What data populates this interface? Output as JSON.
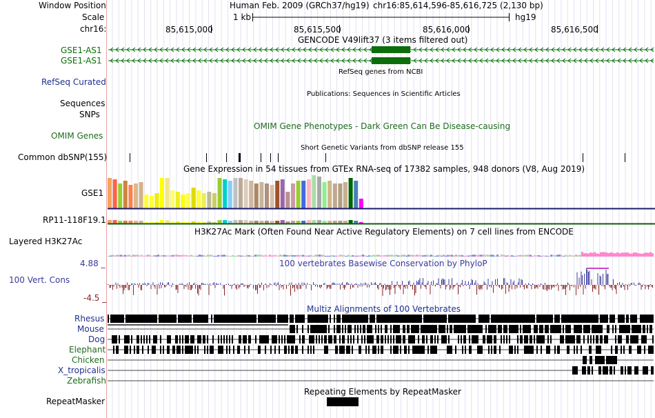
{
  "header": {
    "window_position_label": "Window Position",
    "scale_label": "Scale",
    "chrom_label": "chr16:",
    "assembly_text": "Human Feb. 2009 (GRCh37/hg19)",
    "position_text": "chr16:85,614,596-85,616,725 (2,130 bp)",
    "scale_value": "1 kb",
    "scale_assembly": "hg19",
    "ruler_ticks": [
      "85,615,000",
      "85,615,500",
      "85,616,000",
      "85,616,500"
    ]
  },
  "tracks": {
    "gencode": {
      "title": "GENCODE V49lift37 (3 items filtered out)",
      "items": [
        "GSE1-AS1",
        "GSE1-AS1"
      ],
      "color": "#0b6e0b"
    },
    "refseq": {
      "title": "RefSeq genes from NCBI",
      "label": "RefSeq Curated",
      "color": "#1f2f8f"
    },
    "publications": {
      "title": "Publications: Sequences in Scientific Articles",
      "label": "Sequences"
    },
    "snps_label": "SNPs",
    "omim": {
      "title": "OMIM Gene Phenotypes - Dark Green Can Be Disease-causing",
      "label": "OMIM Genes",
      "color": "#1d6a1d"
    },
    "dbsnp": {
      "title": "Short Genetic Variants from dbSNP release 155",
      "label": "Common dbSNP(155)"
    },
    "gtex": {
      "title": "Gene Expression in 54 tissues from GTEx RNA-seq of 17382 samples, 948 donors (V8, Aug 2019)",
      "genes": [
        "GSE1",
        "RP11-118F19.1"
      ]
    },
    "h3k27ac": {
      "title": "H3K27Ac Mark (Often Found Near Active Regulatory Elements) on 7 cell lines from ENCODE",
      "label": "Layered H3K27Ac"
    },
    "phylop": {
      "title": "100 vertebrates Basewise Conservation by PhyloP",
      "label": "100 Vert. Cons",
      "max": "4.88 _",
      "min": "-4.5 _",
      "color": "#3a3a9a"
    },
    "multiz": {
      "title": "Multiz Alignments of 100 Vertebrates",
      "species": [
        "Rhesus",
        "Mouse",
        "Dog",
        "Elephant",
        "Chicken",
        "X_tropicalis",
        "Zebrafish"
      ]
    },
    "repeatmasker": {
      "title": "Repeating Elements by RepeatMasker",
      "label": "RepeatMasker"
    }
  }
}
